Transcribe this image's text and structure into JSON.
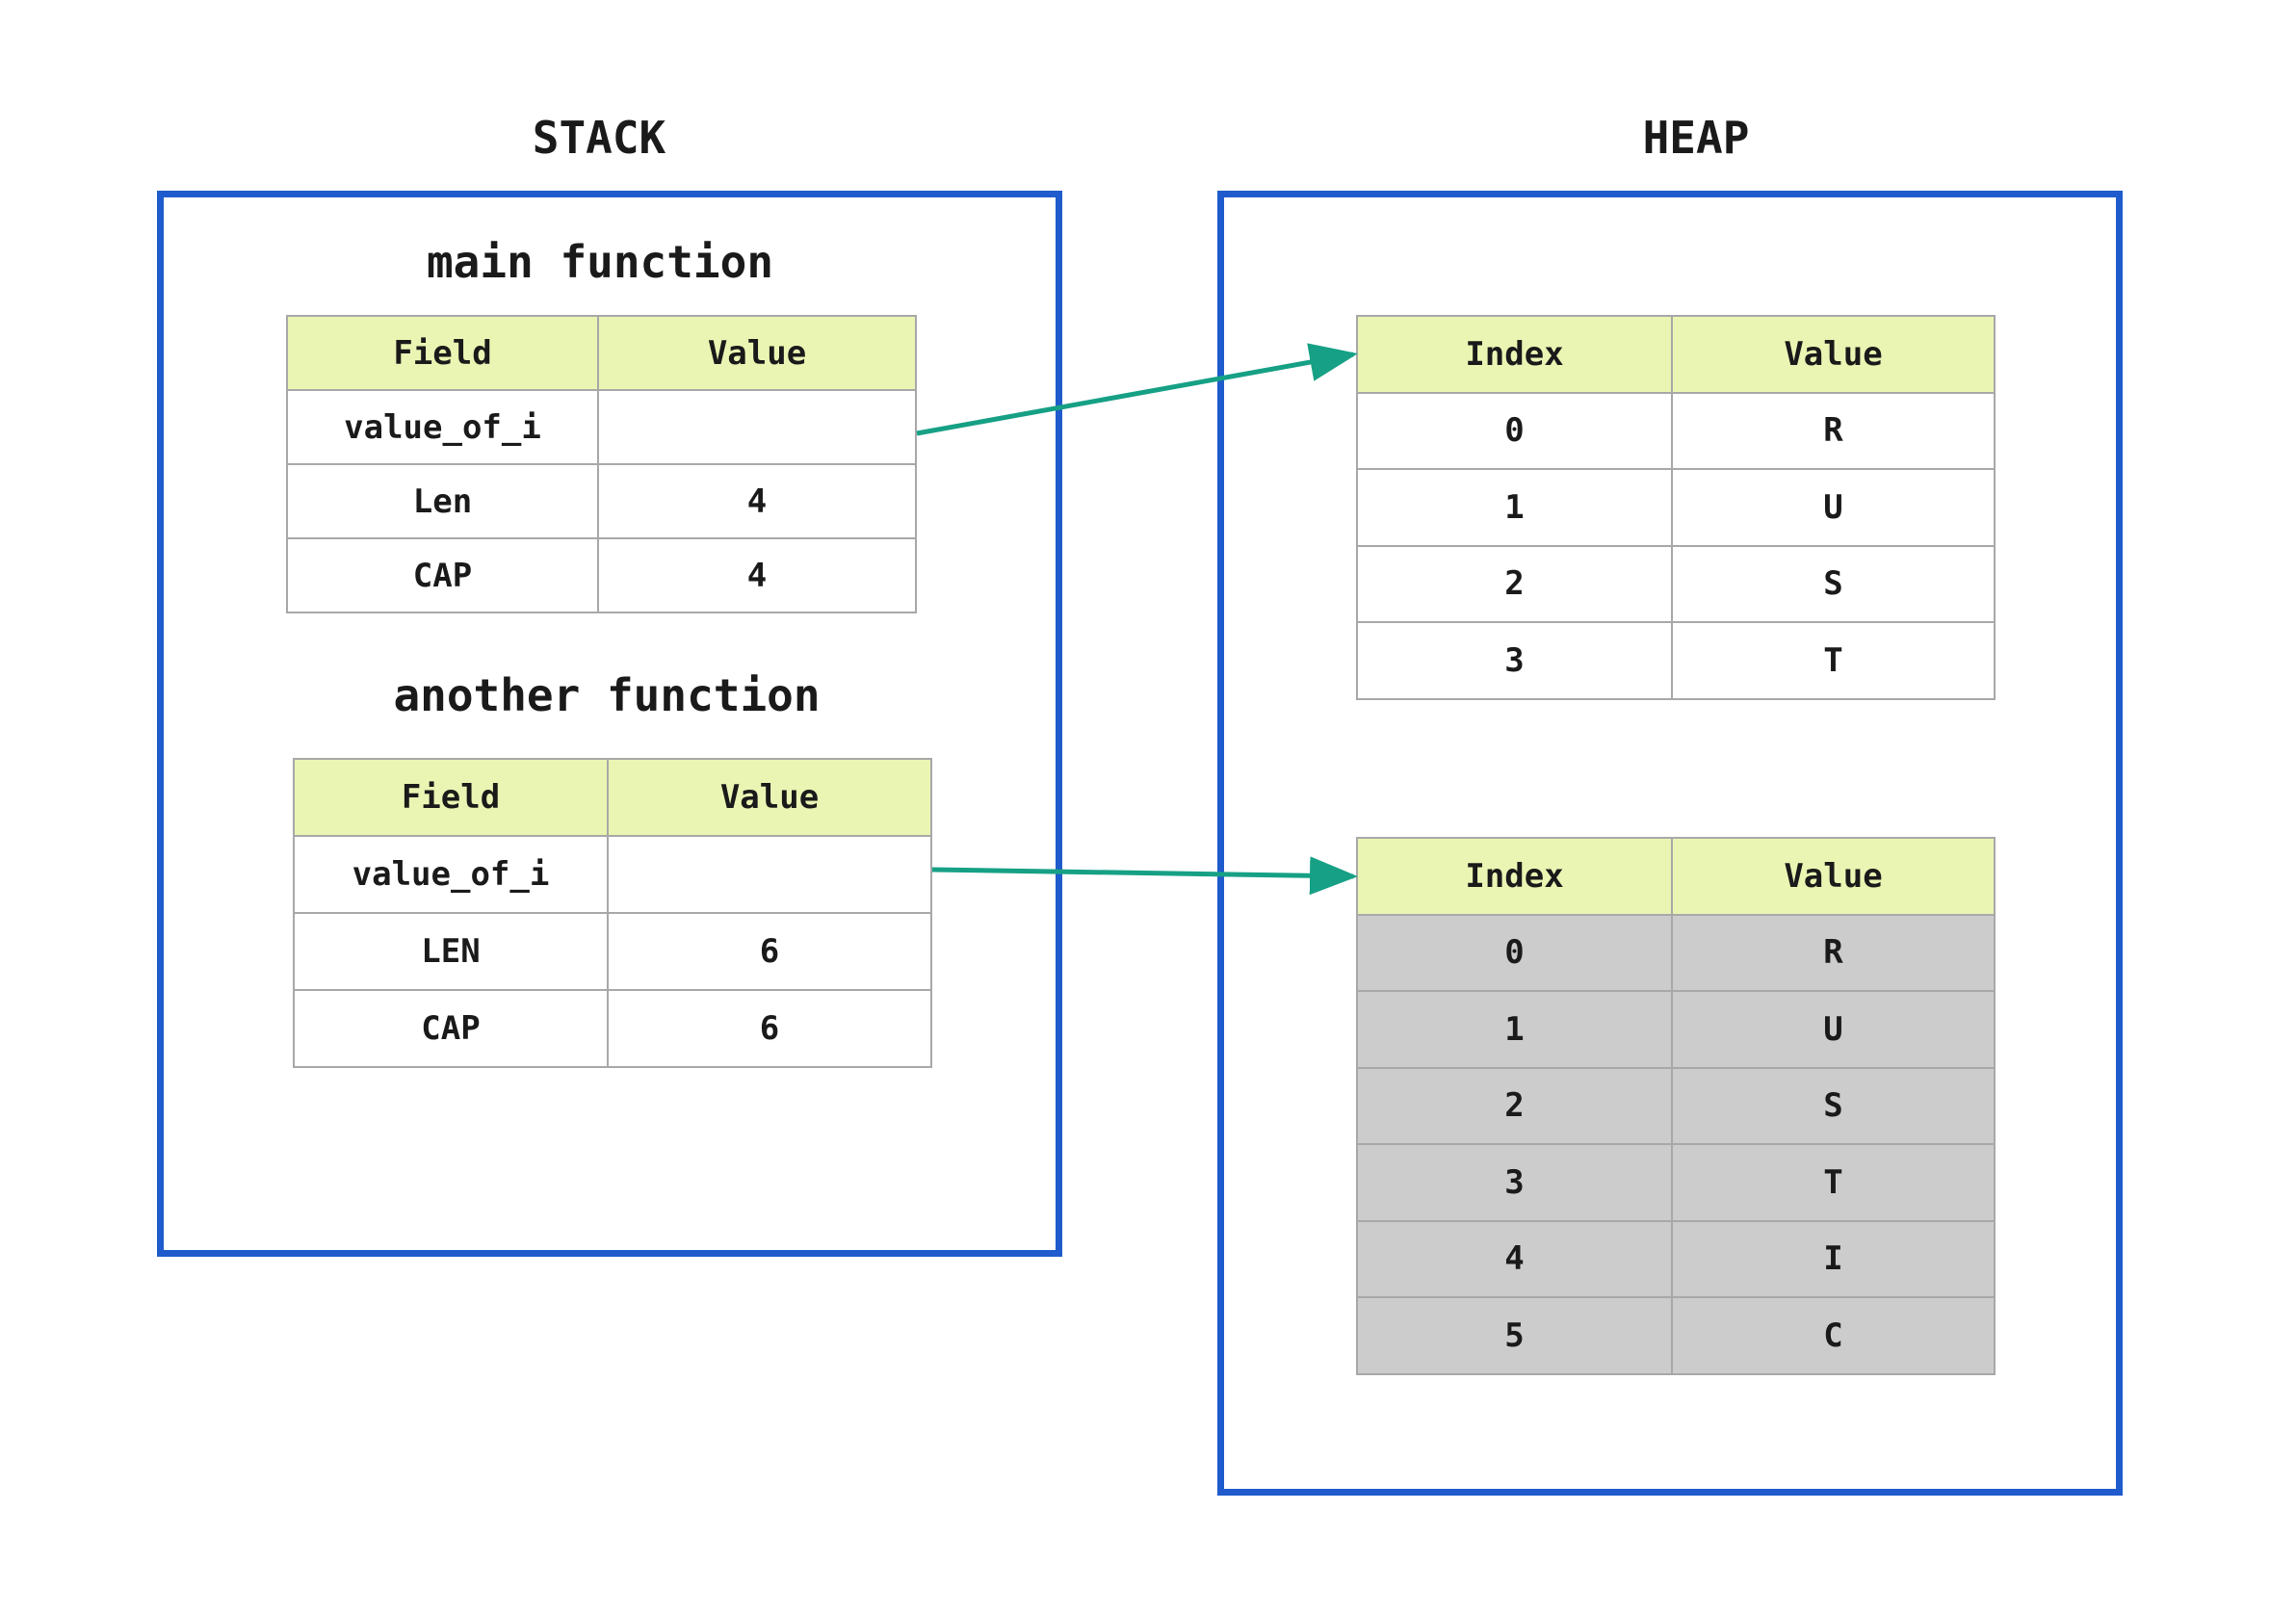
{
  "stack": {
    "title": "STACK",
    "frames": [
      {
        "title": "main function",
        "headers": [
          "Field",
          "Value"
        ],
        "rows": [
          [
            "value_of_i",
            ""
          ],
          [
            "Len",
            "4"
          ],
          [
            "CAP",
            "4"
          ]
        ]
      },
      {
        "title": "another function",
        "headers": [
          "Field",
          "Value"
        ],
        "rows": [
          [
            "value_of_i",
            ""
          ],
          [
            "LEN",
            "6"
          ],
          [
            "CAP",
            "6"
          ]
        ]
      }
    ]
  },
  "heap": {
    "title": "HEAP",
    "arrays": [
      {
        "headers": [
          "Index",
          "Value"
        ],
        "rows": [
          [
            "0",
            "R"
          ],
          [
            "1",
            "U"
          ],
          [
            "2",
            "S"
          ],
          [
            "3",
            "T"
          ]
        ]
      },
      {
        "headers": [
          "Index",
          "Value"
        ],
        "rows": [
          [
            "0",
            "R"
          ],
          [
            "1",
            "U"
          ],
          [
            "2",
            "S"
          ],
          [
            "3",
            "T"
          ],
          [
            "4",
            "I"
          ],
          [
            "5",
            "C"
          ]
        ]
      }
    ]
  },
  "colors": {
    "box_border": "#1f5bcc",
    "header_fill": "#eaf5b3",
    "shaded_fill": "#cccccc",
    "arrow": "#16a085"
  }
}
